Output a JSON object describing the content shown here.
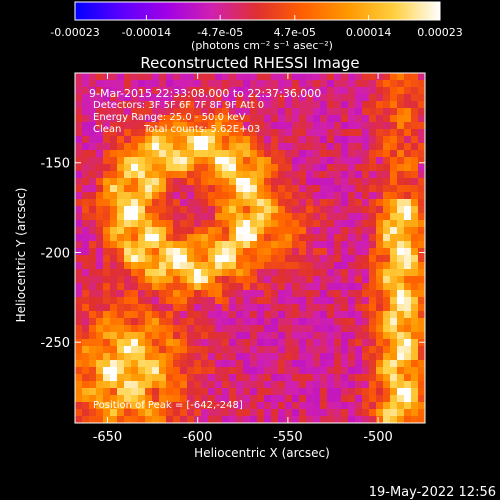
{
  "colorbar": {
    "tick_labels": [
      "-0.00023",
      "-0.00014",
      "-4.7e-05",
      "4.7e-05",
      "0.00014",
      "0.00023"
    ],
    "tick_values": [
      -0.00023,
      -0.00014,
      -4.7e-05,
      4.7e-05,
      0.00014,
      0.00023
    ],
    "range": [
      -0.00023,
      0.00023
    ],
    "units": "(photons cm⁻² s⁻¹ asec⁻²)",
    "colors": [
      "#0000ff",
      "#5a00ff",
      "#a000e6",
      "#d020b0",
      "#e03030",
      "#ff6000",
      "#ff9900",
      "#ffd040",
      "#ffffff"
    ]
  },
  "chart_data": {
    "type": "heatmap",
    "title": "Reconstructed RHESSI Image",
    "xlabel": "Heliocentric X (arcsec)",
    "ylabel": "Heliocentric Y (arcsec)",
    "xlim": [
      -668,
      -474
    ],
    "ylim": [
      -295,
      -100
    ],
    "xticks": [
      -650,
      -600,
      -550,
      -500
    ],
    "xtick_labels": [
      "-650",
      "-600",
      "-550",
      "-500"
    ],
    "yticks": [
      -150,
      -200,
      -250
    ],
    "ytick_labels": [
      "-150",
      "-200",
      "-250"
    ],
    "annotations": {
      "time": "9-Mar-2015 22:33:08.000 to 22:37:36.000",
      "detectors": "Detectors: 3F 5F 6F 7F 8F 9F  Att 0",
      "energy": "Energy Range: 25.0 - 50.0 keV",
      "method": "Clean",
      "counts": "Total counts: 5.62E+03",
      "peak": "Position of Peak = [-642,-248]"
    },
    "peak": [
      -642,
      -248
    ],
    "grid_cells": 50
  },
  "footer": {
    "date": "19-May-2022 12:56"
  }
}
